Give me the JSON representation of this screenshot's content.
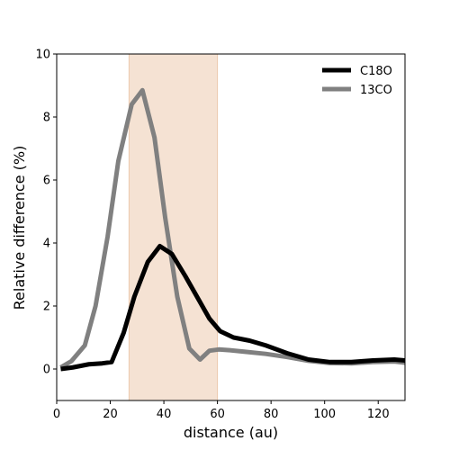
{
  "chart_data": {
    "type": "line",
    "xlabel": "distance (au)",
    "ylabel": "Relative difference (%)",
    "xlim": [
      0,
      130
    ],
    "ylim": [
      -1,
      10
    ],
    "xticks": [
      0,
      20,
      40,
      60,
      80,
      100,
      120
    ],
    "yticks": [
      0,
      2,
      4,
      6,
      8,
      10
    ],
    "grid": false,
    "legend_position": "upper-right",
    "shaded_band": {
      "x0": 27,
      "x1": 60,
      "color": "#f5e2d3"
    },
    "series": [
      {
        "name": "C18O",
        "color": "#000000",
        "x": [
          1.5,
          6,
          12,
          17,
          20.5,
          25,
          29,
          34,
          38.5,
          43,
          48,
          53,
          57,
          61,
          66,
          72,
          78,
          86,
          94,
          102,
          110,
          118,
          126,
          130
        ],
        "y": [
          0.0,
          0.05,
          0.15,
          0.18,
          0.22,
          1.15,
          2.3,
          3.4,
          3.9,
          3.65,
          2.95,
          2.2,
          1.6,
          1.2,
          1.0,
          0.9,
          0.75,
          0.5,
          0.3,
          0.22,
          0.22,
          0.27,
          0.3,
          0.27
        ]
      },
      {
        "name": "13CO",
        "color": "#808080",
        "x": [
          1.5,
          5.5,
          10.5,
          14.5,
          19,
          23,
          28,
          32,
          36.5,
          40.5,
          45,
          49.5,
          53.5,
          57,
          60.5,
          64,
          70,
          78,
          86,
          94,
          102,
          110,
          118,
          126,
          130
        ],
        "y": [
          0.05,
          0.25,
          0.75,
          2.0,
          4.2,
          6.6,
          8.4,
          8.85,
          7.35,
          4.8,
          2.3,
          0.65,
          0.3,
          0.58,
          0.62,
          0.6,
          0.55,
          0.48,
          0.38,
          0.26,
          0.19,
          0.18,
          0.22,
          0.24,
          0.2
        ]
      }
    ]
  }
}
